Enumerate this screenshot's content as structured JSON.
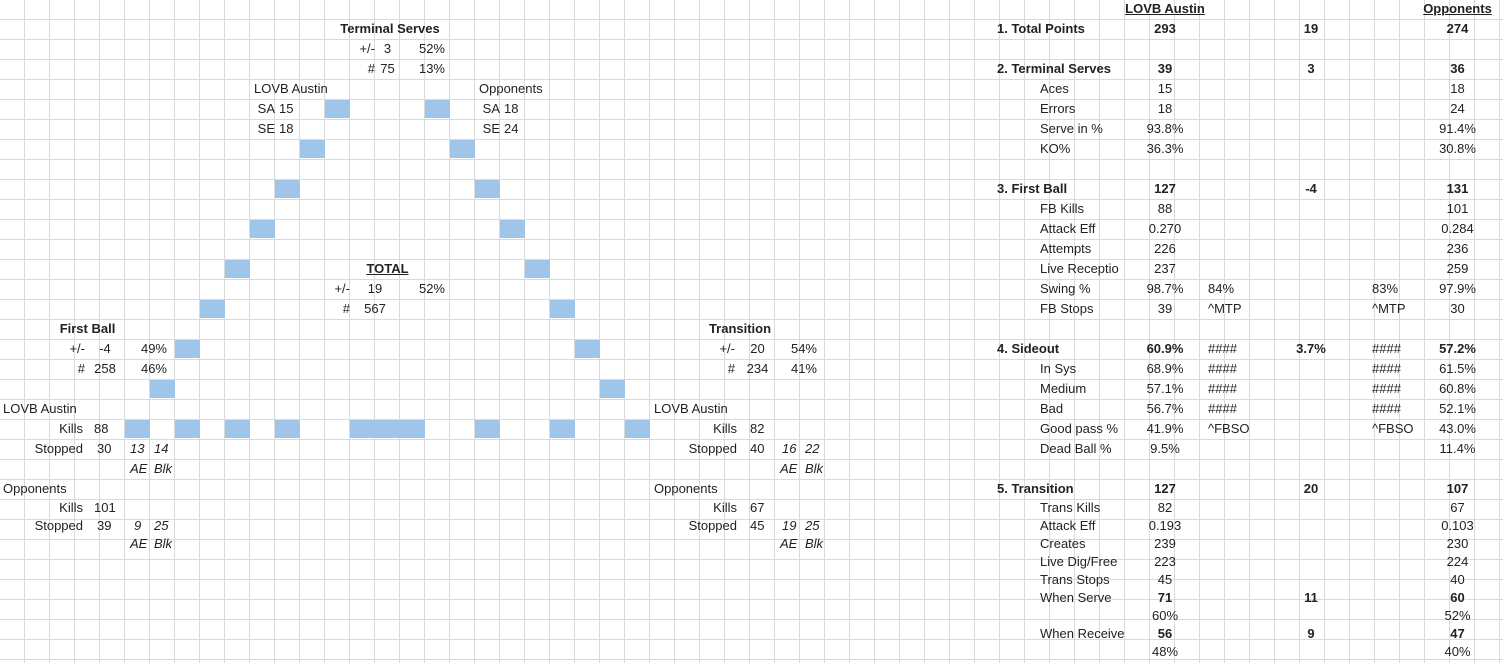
{
  "colors": {
    "block_fill": "#9fc5e8",
    "grid_line": "#dadada"
  },
  "diagram": {
    "terminal_serves": {
      "title": "Terminal Serves",
      "pm_label": "+/-",
      "pm_value": "3",
      "pm_pct": "52%",
      "count_label": "#",
      "count_value": "75",
      "count_pct": "13%",
      "lovb_label": "LOVB Austin",
      "lovb_sa_label": "SA",
      "lovb_sa": "15",
      "lovb_se_label": "SE",
      "lovb_se": "18",
      "opp_label": "Opponents",
      "opp_sa_label": "SA",
      "opp_sa": "18",
      "opp_se_label": "SE",
      "opp_se": "24"
    },
    "total": {
      "title": "TOTAL",
      "pm_label": "+/-",
      "pm_value": "19",
      "pm_pct": "52%",
      "count_label": "#",
      "count_value": "567"
    },
    "first_ball": {
      "title": "First Ball",
      "pm_label": "+/-",
      "pm_value": "-4",
      "pm_pct": "49%",
      "count_label": "#",
      "count_value": "258",
      "count_pct": "46%",
      "lovb_label": "LOVB Austin",
      "lovb_kills_label": "Kills",
      "lovb_kills": "88",
      "lovb_stopped_label": "Stopped",
      "lovb_stopped": "30",
      "lovb_ae": "13",
      "lovb_blk": "14",
      "ae_label": "AE",
      "blk_label": "Blk",
      "opp_label": "Opponents",
      "opp_kills_label": "Kills",
      "opp_kills": "101",
      "opp_stopped_label": "Stopped",
      "opp_stopped": "39",
      "opp_ae": "9",
      "opp_blk": "25"
    },
    "transition": {
      "title": "Transition",
      "pm_label": "+/-",
      "pm_value": "20",
      "pm_pct": "54%",
      "count_label": "#",
      "count_value": "234",
      "count_pct": "41%",
      "lovb_label": "LOVB Austin",
      "lovb_kills_label": "Kills",
      "lovb_kills": "82",
      "lovb_stopped_label": "Stopped",
      "lovb_stopped": "40",
      "lovb_ae": "16",
      "lovb_blk": "22",
      "ae_label": "AE",
      "blk_label": "Blk",
      "opp_label": "Opponents",
      "opp_kills_label": "Kills",
      "opp_kills": "67",
      "opp_stopped_label": "Stopped",
      "opp_stopped": "45",
      "opp_ae": "19",
      "opp_blk": "25"
    }
  },
  "summary": {
    "lovb_header": "LOVB Austin",
    "opp_header": "Opponents",
    "total_points": {
      "label": "1. Total Points",
      "lovb": "293",
      "diff": "19",
      "opp": "274"
    },
    "terminal_serves": {
      "label": "2. Terminal Serves",
      "lovb": "39",
      "diff": "3",
      "opp": "36",
      "rows": [
        {
          "label": "Aces",
          "lovb": "15",
          "opp": "18"
        },
        {
          "label": "Errors",
          "lovb": "18",
          "opp": "24"
        },
        {
          "label": "Serve in %",
          "lovb": "93.8%",
          "opp": "91.4%"
        },
        {
          "label": "KO%",
          "lovb": "36.3%",
          "opp": "30.8%"
        }
      ]
    },
    "first_ball": {
      "label": "3. First Ball",
      "lovb": "127",
      "diff": "-4",
      "opp": "131",
      "rows": [
        {
          "label": "FB Kills",
          "lovb": "88",
          "opp": "101"
        },
        {
          "label": "Attack Eff",
          "lovb": "0.270",
          "opp": "0.284"
        },
        {
          "label": "Attempts",
          "lovb": "226",
          "opp": "236"
        },
        {
          "label": "Live Receptio",
          "lovb": "237",
          "opp": "259"
        },
        {
          "label": "Swing %",
          "lovb": "98.7%",
          "lovb_extra": "84%",
          "opp_extra": "83%",
          "opp": "97.9%"
        },
        {
          "label": "FB Stops",
          "lovb": "39",
          "lovb_extra": "^MTP",
          "opp_extra": "^MTP",
          "opp": "30"
        }
      ]
    },
    "sideout": {
      "label": "4. Sideout",
      "lovb": "60.9%",
      "lovb_extra": "####",
      "diff": "3.7%",
      "opp_extra": "####",
      "opp": "57.2%",
      "rows": [
        {
          "label": "In Sys",
          "lovb": "68.9%",
          "lovb_extra": "####",
          "opp_extra": "####",
          "opp": "61.5%"
        },
        {
          "label": "Medium",
          "lovb": "57.1%",
          "lovb_extra": "####",
          "opp_extra": "####",
          "opp": "60.8%"
        },
        {
          "label": "Bad",
          "lovb": "56.7%",
          "lovb_extra": "####",
          "opp_extra": "####",
          "opp": "52.1%"
        },
        {
          "label": "Good pass %",
          "lovb": "41.9%",
          "lovb_extra": "^FBSO",
          "opp_extra": "^FBSO",
          "opp": "43.0%"
        },
        {
          "label": "Dead Ball %",
          "lovb": "9.5%",
          "opp": "11.4%"
        }
      ]
    },
    "transition": {
      "label": "5. Transition",
      "lovb": "127",
      "diff": "20",
      "opp": "107",
      "rows": [
        {
          "label": "Trans Kills",
          "lovb": "82",
          "opp": "67"
        },
        {
          "label": "Attack Eff",
          "lovb": "0.193",
          "opp": "0.103"
        },
        {
          "label": "Creates",
          "lovb": "239",
          "opp": "230"
        },
        {
          "label": "Live Dig/Free",
          "lovb": "223",
          "opp": "224"
        },
        {
          "label": "Trans Stops",
          "lovb": "45",
          "opp": "40"
        }
      ],
      "when_serve": {
        "label": "When Serve",
        "lovb": "71",
        "diff": "11",
        "opp": "60",
        "lovb_pct": "60%",
        "opp_pct": "52%"
      },
      "when_receive": {
        "label": "When Receive",
        "lovb": "56",
        "diff": "9",
        "opp": "47",
        "lovb_pct": "48%",
        "opp_pct": "40%"
      }
    }
  }
}
